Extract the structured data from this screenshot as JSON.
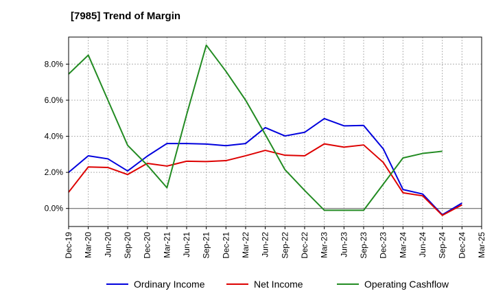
{
  "title": "[7985]  Trend of Margin",
  "chart_data": {
    "type": "line",
    "title": "[7985]  Trend of Margin",
    "xlabel": "",
    "ylabel": "",
    "categories": [
      "Dec-19",
      "Mar-20",
      "Jun-20",
      "Sep-20",
      "Dec-20",
      "Mar-21",
      "Jun-21",
      "Sep-21",
      "Dec-21",
      "Mar-22",
      "Jun-22",
      "Sep-22",
      "Dec-22",
      "Mar-23",
      "Jun-23",
      "Sep-23",
      "Dec-23",
      "Mar-24",
      "Jun-24",
      "Sep-24",
      "Dec-24",
      "Mar-25"
    ],
    "y_ticks": [
      "0.0%",
      "2.0%",
      "4.0%",
      "6.0%",
      "8.0%"
    ],
    "ylim": [
      -1.0,
      9.5
    ],
    "grid": true,
    "legend_position": "bottom",
    "series": [
      {
        "name": "Ordinary Income",
        "color": "#0000dd",
        "values": [
          2.0,
          2.92,
          2.75,
          2.08,
          2.9,
          3.6,
          3.6,
          3.57,
          3.48,
          3.6,
          4.48,
          4.02,
          4.22,
          4.98,
          4.58,
          4.6,
          3.3,
          1.05,
          0.8,
          -0.35,
          0.3,
          null
        ]
      },
      {
        "name": "Net Income",
        "color": "#dd0000",
        "values": [
          0.9,
          2.3,
          2.27,
          1.88,
          2.5,
          2.35,
          2.62,
          2.6,
          2.65,
          2.92,
          3.22,
          2.95,
          2.92,
          3.58,
          3.4,
          3.52,
          2.55,
          0.87,
          0.7,
          -0.38,
          0.2,
          null
        ]
      },
      {
        "name": "Operating Cashflow",
        "color": "#228B22",
        "values": [
          7.45,
          8.5,
          6.0,
          3.5,
          2.4,
          1.15,
          5.2,
          9.05,
          7.6,
          6.0,
          4.1,
          2.15,
          1.0,
          -0.1,
          -0.1,
          -0.1,
          1.35,
          2.8,
          3.05,
          3.17,
          null,
          null
        ]
      }
    ]
  }
}
